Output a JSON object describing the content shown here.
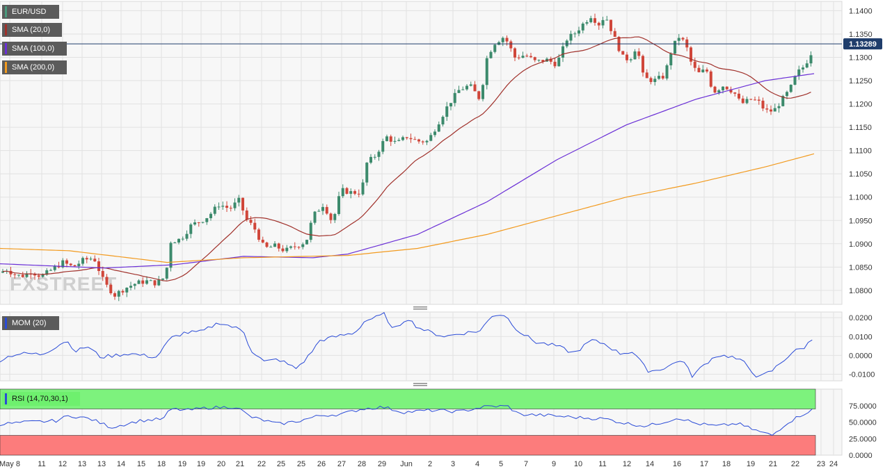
{
  "chart_data": [
    {
      "type": "candlestick",
      "symbol": "EUR/USD",
      "last_price": "1.13289",
      "ylim": [
        1.077,
        1.142
      ],
      "yticks": [
        "1.1400",
        "1.1350",
        "1.1300",
        "1.1250",
        "1.1200",
        "1.1150",
        "1.1100",
        "1.1050",
        "1.1000",
        "1.0950",
        "1.0900",
        "1.0850",
        "1.0800"
      ],
      "legend": [
        {
          "label": "EUR/USD",
          "color": "#4a9a7d"
        },
        {
          "label": "SMA (20,0)",
          "color": "#a0302a"
        },
        {
          "label": "SMA (100,0)",
          "color": "#6a2fd6"
        },
        {
          "label": "SMA (200,0)",
          "color": "#f29a1e"
        }
      ],
      "colors": {
        "up": "#3c8a6c",
        "down": "#d0463a",
        "sma20": "#a0302a",
        "sma100": "#6a2fd6",
        "sma200": "#f29a1e",
        "price_line": "#1f3d6b"
      },
      "watermark": "FXSTREET",
      "xlabels": [
        "May 8",
        "11",
        "12",
        "13",
        "13",
        "14",
        "15",
        "18",
        "19",
        "19",
        "20",
        "21",
        "22",
        "25",
        "25",
        "26",
        "27",
        "28",
        "29",
        "Jun",
        "2",
        "3",
        "4",
        "5",
        "7",
        "9",
        "10",
        "11",
        "12",
        "14",
        "16",
        "17",
        "18",
        "19",
        "21",
        "22",
        "23",
        "24"
      ]
    },
    {
      "type": "line",
      "title": "MOM (20)",
      "color": "#2a4bd7",
      "ylim": [
        -0.0135,
        0.023
      ],
      "yticks": [
        "0.0200",
        "0.0100",
        "0.0000",
        "-0.0100"
      ]
    },
    {
      "type": "line",
      "title": "RSI (14,70,30,1)",
      "color": "#2a4bd7",
      "ylim": [
        0,
        100
      ],
      "upper_band": 70,
      "lower_band": 30,
      "yticks": [
        "75.0000",
        "50.0000",
        "25.0000",
        "0.0000"
      ]
    }
  ]
}
